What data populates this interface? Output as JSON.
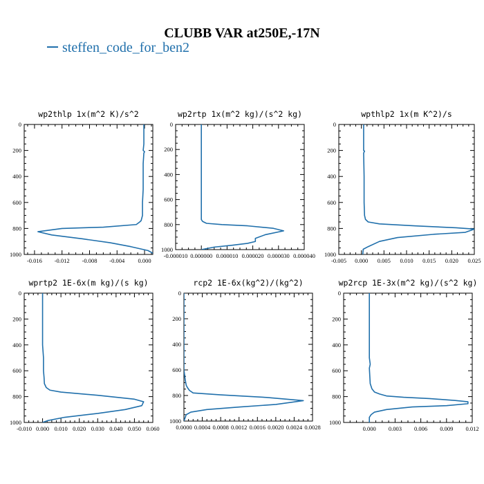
{
  "title": "CLUBB VAR at250E,-17N",
  "legend": {
    "label": "steffen_code_for_ben2",
    "color": "#1f6fab"
  },
  "chart_data": [
    {
      "type": "line",
      "title": "wp2thlp  1x(m^2 K)/s^2",
      "ylim": [
        1000,
        0
      ],
      "yticks": [
        0,
        200,
        400,
        600,
        800,
        1000
      ],
      "ytick_labels": [
        "0",
        "200",
        "400",
        "600",
        "800",
        "1000"
      ],
      "xlim": [
        -0.0175,
        0.0012
      ],
      "xticks": [
        -0.016,
        -0.012,
        -0.008,
        -0.004,
        0.0
      ],
      "xtick_labels": [
        "-0.016",
        "-0.012",
        "-0.008",
        "-0.004",
        "0.000"
      ],
      "series": [
        {
          "x": [
            -0.0001,
            -0.0001,
            -0.0002,
            0.0,
            -0.0001,
            -0.0002,
            -0.0002,
            -0.0002,
            -0.0003,
            -0.0003,
            -0.0003,
            -0.0004,
            -0.0005,
            -0.0007,
            -0.0012,
            -0.006,
            -0.012,
            -0.0155,
            -0.0135,
            -0.009,
            -0.005,
            -0.002,
            0.0005,
            0.0012
          ],
          "y": [
            0,
            150,
            200,
            210,
            220,
            300,
            400,
            500,
            600,
            650,
            700,
            720,
            740,
            750,
            770,
            790,
            800,
            825,
            850,
            880,
            910,
            940,
            970,
            990
          ]
        }
      ]
    },
    {
      "type": "line",
      "title": "wp2rtp  1x(m^2 kg)/(s^2 kg)",
      "ylim": [
        1000,
        0
      ],
      "yticks": [
        0,
        200,
        400,
        600,
        800,
        1000
      ],
      "ytick_labels": [
        "0",
        "200",
        "400",
        "600",
        "800",
        "1000"
      ],
      "xlim": [
        -1e-05,
        4e-05
      ],
      "xticks": [
        -1e-05,
        0.0,
        1e-05,
        2e-05,
        3e-05,
        4e-05
      ],
      "xtick_labels": [
        "-0.000010",
        "0.000000",
        "0.000010",
        "0.000020",
        "0.000030",
        "0.000040"
      ],
      "series": [
        {
          "x": [
            0.0,
            0.0,
            0.0,
            0.0,
            0.0,
            0.0,
            0.0,
            5e-07,
            2e-06,
            8e-06,
            1.8e-05,
            2.8e-05,
            3.2e-05,
            2.5e-05,
            2.1e-05,
            2.1e-05,
            1.8e-05,
            1.2e-05,
            5e-06,
            0.0
          ],
          "y": [
            0,
            200,
            400,
            600,
            700,
            730,
            760,
            775,
            790,
            800,
            810,
            830,
            850,
            880,
            910,
            935,
            950,
            965,
            980,
            1000
          ]
        }
      ]
    },
    {
      "type": "line",
      "title": "wpthlp2  1x(m K^2)/s",
      "ylim": [
        1000,
        0
      ],
      "yticks": [
        0,
        200,
        400,
        600,
        800,
        1000
      ],
      "ytick_labels": [
        "0",
        "200",
        "400",
        "600",
        "800",
        "1000"
      ],
      "xlim": [
        -0.005,
        0.025
      ],
      "xticks": [
        -0.005,
        0.0,
        0.005,
        0.01,
        0.015,
        0.02,
        0.025
      ],
      "xtick_labels": [
        "-0.005",
        "0.000",
        "0.005",
        "0.010",
        "0.015",
        "0.020",
        "0.025"
      ],
      "series": [
        {
          "x": [
            0.0005,
            0.0005,
            0.0007,
            0.0005,
            0.0006,
            0.0006,
            0.0007,
            0.0009,
            0.0015,
            0.004,
            0.012,
            0.021,
            0.025,
            0.023,
            0.016,
            0.008,
            0.004,
            0.0015,
            0.0004,
            0.0003
          ],
          "y": [
            0,
            200,
            205,
            220,
            400,
            600,
            700,
            730,
            750,
            765,
            780,
            795,
            805,
            830,
            845,
            870,
            900,
            940,
            960,
            1000
          ]
        }
      ]
    },
    {
      "type": "line",
      "title": "wprtp2  1E-6x(m kg)/(s kg)",
      "ylim": [
        1000,
        0
      ],
      "yticks": [
        0,
        200,
        400,
        600,
        800,
        1000
      ],
      "ytick_labels": [
        "0",
        "200",
        "400",
        "600",
        "800",
        "1000"
      ],
      "xlim": [
        -0.01,
        0.06
      ],
      "xticks": [
        -0.01,
        0.0,
        0.01,
        0.02,
        0.03,
        0.04,
        0.05,
        0.06
      ],
      "xtick_labels": [
        "-0.010",
        "0.000",
        "0.010",
        "0.020",
        "0.030",
        "0.040",
        "0.050",
        "0.060"
      ],
      "series": [
        {
          "x": [
            0.0,
            0.0,
            0.0,
            0.0005,
            0.0005,
            0.0008,
            0.001,
            0.002,
            0.004,
            0.01,
            0.03,
            0.05,
            0.055,
            0.054,
            0.045,
            0.03,
            0.012,
            0.003,
            0.0
          ],
          "y": [
            0,
            200,
            400,
            500,
            600,
            650,
            700,
            730,
            750,
            765,
            790,
            820,
            840,
            870,
            900,
            930,
            960,
            985,
            1000
          ]
        }
      ]
    },
    {
      "type": "line",
      "title": "rcp2  1E-6x(kg^2)/(kg^2)",
      "ylim": [
        1000,
        0
      ],
      "yticks": [
        0,
        200,
        400,
        600,
        800,
        1000
      ],
      "ytick_labels": [
        "0",
        "200",
        "400",
        "600",
        "800",
        "1000"
      ],
      "xlim": [
        0.0,
        0.0028
      ],
      "xticks": [
        0.0,
        0.0004,
        0.0008,
        0.0012,
        0.0016,
        0.002,
        0.0024,
        0.0028
      ],
      "xtick_labels": [
        "0.0000",
        "0.0004",
        "0.0008",
        "0.0012",
        "0.0016",
        "0.0020",
        "0.0024",
        "0.0028"
      ],
      "series": [
        {
          "x": [
            0.0,
            0.0,
            0.0,
            3e-05,
            5e-05,
            8e-05,
            0.00012,
            0.0002,
            0.0008,
            0.0018,
            0.0026,
            0.002,
            0.0012,
            0.0005,
            0.00015,
            5e-05,
            0.0
          ],
          "y": [
            0,
            200,
            600,
            680,
            720,
            740,
            760,
            780,
            795,
            815,
            840,
            870,
            890,
            910,
            930,
            950,
            1000
          ]
        }
      ]
    },
    {
      "type": "line",
      "title": "wp2rcp  1E-3x(m^2 kg)/(s^2 kg)",
      "ylim": [
        1000,
        0
      ],
      "yticks": [
        0,
        200,
        400,
        600,
        800,
        1000
      ],
      "ytick_labels": [
        "0",
        "200",
        "400",
        "600",
        "800",
        "1000"
      ],
      "xlim": [
        -0.003,
        0.012
      ],
      "xticks": [
        0.0,
        0.003,
        0.006,
        0.009,
        0.012
      ],
      "xtick_labels": [
        "0.000",
        "0.003",
        "0.006",
        "0.009",
        "0.012"
      ],
      "series": [
        {
          "x": [
            0.0,
            0.0,
            0.0,
            0.0001,
            0.0,
            0.0001,
            0.0003,
            0.0006,
            0.0012,
            0.002,
            0.004,
            0.007,
            0.01,
            0.0115,
            0.0115,
            0.009,
            0.005,
            0.002,
            0.0006,
            0.0002,
            0.0,
            0.0
          ],
          "y": [
            0,
            200,
            500,
            550,
            580,
            700,
            740,
            765,
            780,
            795,
            805,
            815,
            830,
            840,
            855,
            870,
            880,
            900,
            920,
            940,
            960,
            1000
          ]
        }
      ]
    }
  ]
}
